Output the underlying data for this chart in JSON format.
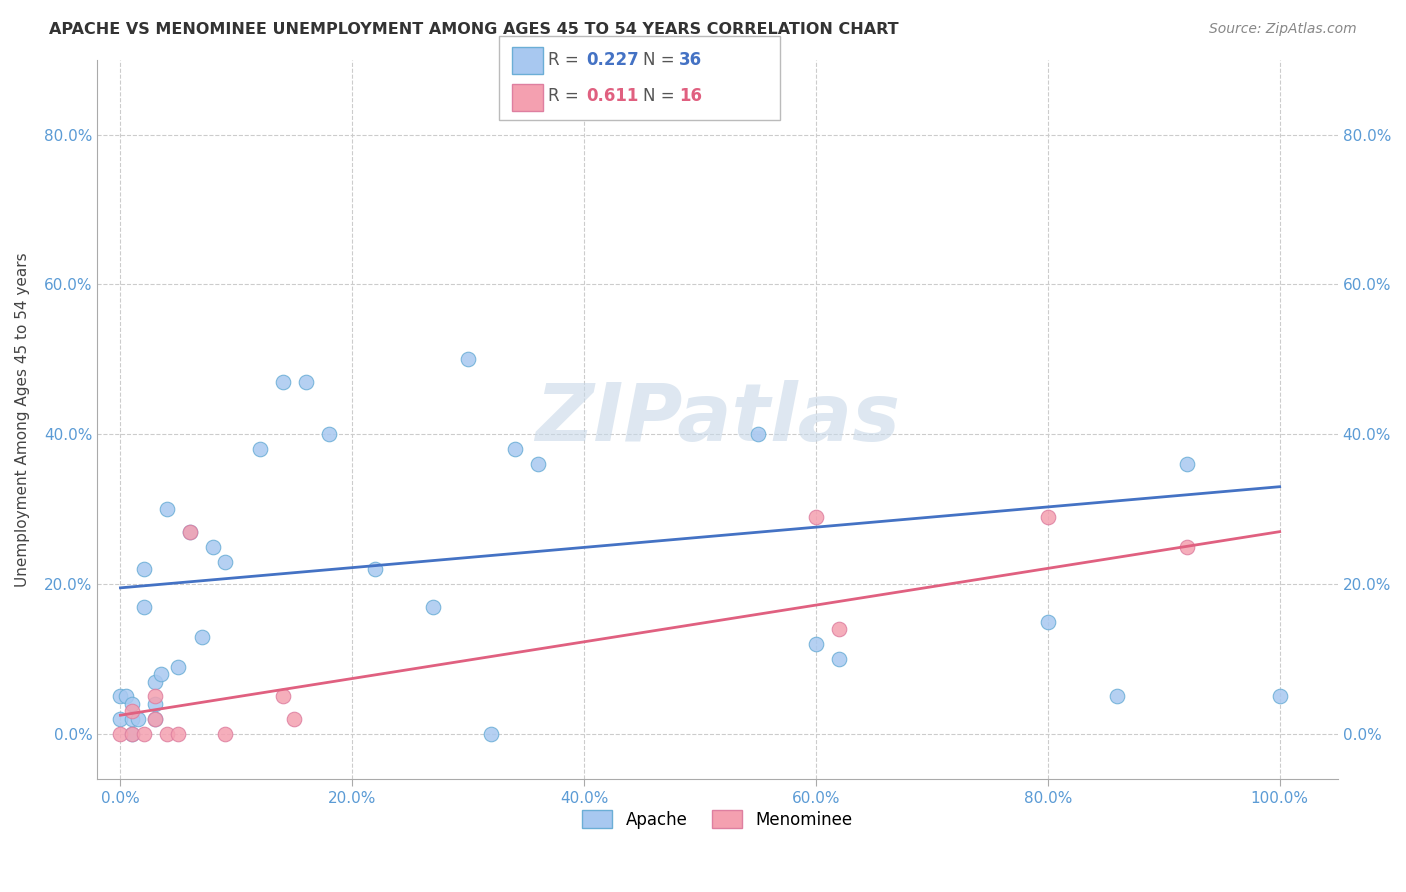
{
  "title": "APACHE VS MENOMINEE UNEMPLOYMENT AMONG AGES 45 TO 54 YEARS CORRELATION CHART",
  "source": "Source: ZipAtlas.com",
  "ylabel": "Unemployment Among Ages 45 to 54 years",
  "xlim": [
    -0.02,
    1.05
  ],
  "ylim": [
    -0.06,
    0.9
  ],
  "xticks": [
    0.0,
    0.2,
    0.4,
    0.6,
    0.8,
    1.0
  ],
  "xtick_labels": [
    "0.0%",
    "20.0%",
    "40.0%",
    "60.0%",
    "80.0%",
    "100.0%"
  ],
  "yticks": [
    0.0,
    0.2,
    0.4,
    0.6,
    0.8
  ],
  "ytick_labels": [
    "0.0%",
    "20.0%",
    "40.0%",
    "60.0%",
    "80.0%"
  ],
  "apache_color": "#a8c8f0",
  "apache_edge_color": "#6baed6",
  "menominee_color": "#f4a0b0",
  "menominee_edge_color": "#de7fa0",
  "apache_R": "0.227",
  "apache_N": "36",
  "menominee_R": "0.611",
  "menominee_N": "16",
  "apache_x": [
    0.0,
    0.0,
    0.005,
    0.01,
    0.01,
    0.01,
    0.015,
    0.02,
    0.02,
    0.03,
    0.03,
    0.03,
    0.035,
    0.04,
    0.05,
    0.06,
    0.07,
    0.08,
    0.09,
    0.12,
    0.14,
    0.16,
    0.18,
    0.22,
    0.27,
    0.3,
    0.32,
    0.34,
    0.36,
    0.55,
    0.6,
    0.62,
    0.8,
    0.86,
    0.92,
    1.0
  ],
  "apache_y": [
    0.02,
    0.05,
    0.05,
    0.0,
    0.02,
    0.04,
    0.02,
    0.17,
    0.22,
    0.02,
    0.04,
    0.07,
    0.08,
    0.3,
    0.09,
    0.27,
    0.13,
    0.25,
    0.23,
    0.38,
    0.47,
    0.47,
    0.4,
    0.22,
    0.17,
    0.5,
    0.0,
    0.38,
    0.36,
    0.4,
    0.12,
    0.1,
    0.15,
    0.05,
    0.36,
    0.05
  ],
  "menominee_x": [
    0.0,
    0.01,
    0.01,
    0.02,
    0.03,
    0.03,
    0.04,
    0.05,
    0.06,
    0.09,
    0.14,
    0.15,
    0.6,
    0.62,
    0.8,
    0.92
  ],
  "menominee_y": [
    0.0,
    0.0,
    0.03,
    0.0,
    0.02,
    0.05,
    0.0,
    0.0,
    0.27,
    0.0,
    0.05,
    0.02,
    0.29,
    0.14,
    0.29,
    0.25
  ],
  "apache_line_x": [
    0.0,
    1.0
  ],
  "apache_line_y": [
    0.195,
    0.33
  ],
  "menominee_line_x": [
    0.0,
    1.0
  ],
  "menominee_line_y": [
    0.025,
    0.27
  ],
  "background_color": "#ffffff",
  "grid_color": "#cccccc",
  "marker_size": 110,
  "watermark": "ZIPatlas",
  "watermark_color": "#c8d8e8",
  "apache_legend_color": "#4472c4",
  "menominee_legend_color": "#e06080"
}
